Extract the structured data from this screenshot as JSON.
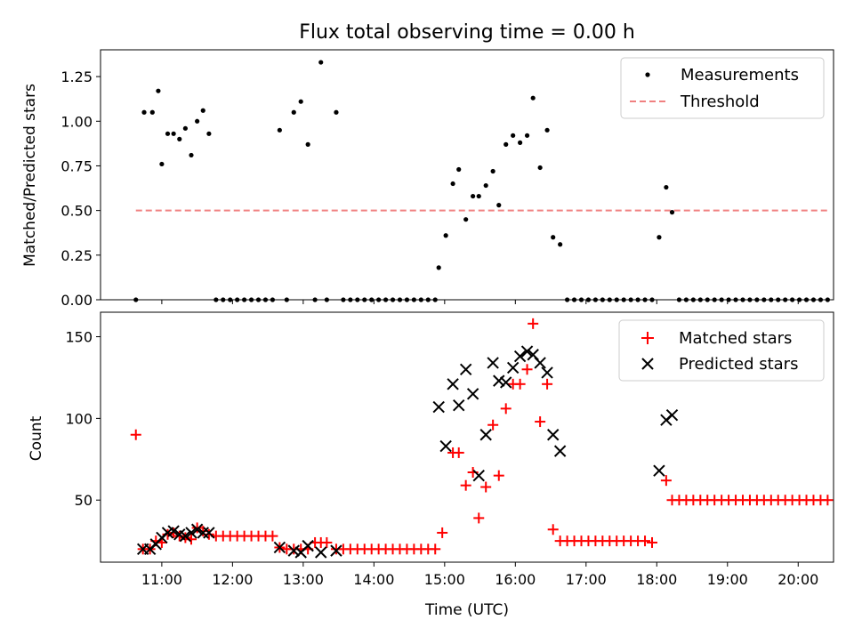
{
  "chart_data": [
    {
      "type": "scatter",
      "title": "Flux total observing time = 0.00 h",
      "xlabel": "",
      "ylabel": "Matched/Predicted stars",
      "ylim": [
        0,
        1.4
      ],
      "yticks": [
        0.0,
        0.25,
        0.5,
        0.75,
        1.0,
        1.25
      ],
      "ytick_labels": [
        "0.00",
        "0.25",
        "0.50",
        "0.75",
        "1.00",
        "1.25"
      ],
      "grid": false,
      "legend": "top-right",
      "colors": {
        "measurements": "#000000",
        "threshold": "#f08080"
      },
      "series": [
        {
          "name": "Measurements",
          "marker": "dot",
          "points": [
            [
              "10:38",
              0.0
            ],
            [
              "10:45",
              1.05
            ],
            [
              "10:52",
              1.05
            ],
            [
              "10:57",
              1.17
            ],
            [
              "11:00",
              0.76
            ],
            [
              "11:05",
              0.93
            ],
            [
              "11:10",
              0.93
            ],
            [
              "11:15",
              0.9
            ],
            [
              "11:20",
              0.96
            ],
            [
              "11:25",
              0.81
            ],
            [
              "11:30",
              1.0
            ],
            [
              "11:35",
              1.06
            ],
            [
              "11:40",
              0.93
            ],
            [
              "11:46",
              0.0
            ],
            [
              "11:52",
              0.0
            ],
            [
              "11:58",
              0.0
            ],
            [
              "12:04",
              0.0
            ],
            [
              "12:10",
              0.0
            ],
            [
              "12:16",
              0.0
            ],
            [
              "12:22",
              0.0
            ],
            [
              "12:28",
              0.0
            ],
            [
              "12:34",
              0.0
            ],
            [
              "12:40",
              0.95
            ],
            [
              "12:46",
              0.0
            ],
            [
              "12:52",
              1.05
            ],
            [
              "12:58",
              1.11
            ],
            [
              "13:04",
              0.87
            ],
            [
              "13:10",
              0.0
            ],
            [
              "13:15",
              1.33
            ],
            [
              "13:20",
              0.0
            ],
            [
              "13:28",
              1.05
            ],
            [
              "13:34",
              0.0
            ],
            [
              "13:40",
              0.0
            ],
            [
              "13:46",
              0.0
            ],
            [
              "13:52",
              0.0
            ],
            [
              "13:58",
              0.0
            ],
            [
              "14:04",
              0.0
            ],
            [
              "14:10",
              0.0
            ],
            [
              "14:16",
              0.0
            ],
            [
              "14:22",
              0.0
            ],
            [
              "14:28",
              0.0
            ],
            [
              "14:34",
              0.0
            ],
            [
              "14:40",
              0.0
            ],
            [
              "14:46",
              0.0
            ],
            [
              "14:52",
              0.0
            ],
            [
              "14:55",
              0.18
            ],
            [
              "15:01",
              0.36
            ],
            [
              "15:07",
              0.65
            ],
            [
              "15:12",
              0.73
            ],
            [
              "15:18",
              0.45
            ],
            [
              "15:24",
              0.58
            ],
            [
              "15:29",
              0.58
            ],
            [
              "15:35",
              0.64
            ],
            [
              "15:41",
              0.72
            ],
            [
              "15:46",
              0.53
            ],
            [
              "15:52",
              0.87
            ],
            [
              "15:58",
              0.92
            ],
            [
              "16:04",
              0.88
            ],
            [
              "16:10",
              0.92
            ],
            [
              "16:15",
              1.13
            ],
            [
              "16:21",
              0.74
            ],
            [
              "16:27",
              0.95
            ],
            [
              "16:32",
              0.35
            ],
            [
              "16:38",
              0.31
            ],
            [
              "16:44",
              0.0
            ],
            [
              "16:50",
              0.0
            ],
            [
              "16:56",
              0.0
            ],
            [
              "17:02",
              0.0
            ],
            [
              "17:08",
              0.0
            ],
            [
              "17:14",
              0.0
            ],
            [
              "17:20",
              0.0
            ],
            [
              "17:26",
              0.0
            ],
            [
              "17:32",
              0.0
            ],
            [
              "17:38",
              0.0
            ],
            [
              "17:44",
              0.0
            ],
            [
              "17:50",
              0.0
            ],
            [
              "17:56",
              0.0
            ],
            [
              "18:02",
              0.35
            ],
            [
              "18:08",
              0.63
            ],
            [
              "18:13",
              0.49
            ],
            [
              "18:19",
              0.0
            ],
            [
              "18:25",
              0.0
            ],
            [
              "18:31",
              0.0
            ],
            [
              "18:37",
              0.0
            ],
            [
              "18:43",
              0.0
            ],
            [
              "18:49",
              0.0
            ],
            [
              "18:55",
              0.0
            ],
            [
              "19:01",
              0.0
            ],
            [
              "19:07",
              0.0
            ],
            [
              "19:13",
              0.0
            ],
            [
              "19:19",
              0.0
            ],
            [
              "19:25",
              0.0
            ],
            [
              "19:31",
              0.0
            ],
            [
              "19:37",
              0.0
            ],
            [
              "19:43",
              0.0
            ],
            [
              "19:49",
              0.0
            ],
            [
              "19:55",
              0.0
            ],
            [
              "20:01",
              0.0
            ],
            [
              "20:07",
              0.0
            ],
            [
              "20:13",
              0.0
            ],
            [
              "20:19",
              0.0
            ],
            [
              "20:25",
              0.0
            ]
          ]
        },
        {
          "name": "Threshold",
          "style": "dashed-line",
          "points": [
            [
              "10:38",
              0.5
            ],
            [
              "20:25",
              0.5
            ]
          ]
        }
      ]
    },
    {
      "type": "scatter",
      "title": "",
      "xlabel": "Time (UTC)",
      "ylabel": "Count",
      "xlim": [
        "10:08",
        "20:30"
      ],
      "xticks": [
        "11:00",
        "12:00",
        "13:00",
        "14:00",
        "15:00",
        "16:00",
        "17:00",
        "18:00",
        "19:00",
        "20:00"
      ],
      "ylim": [
        12,
        165
      ],
      "yticks": [
        50,
        100,
        150
      ],
      "grid": false,
      "legend": "top-right",
      "colors": {
        "matched": "#ff0000",
        "predicted": "#000000"
      },
      "series": [
        {
          "name": "Matched stars",
          "marker": "plus",
          "points": [
            [
              "10:38",
              90
            ],
            [
              "10:44",
              20
            ],
            [
              "10:50",
              20
            ],
            [
              "10:55",
              25
            ],
            [
              "11:00",
              24
            ],
            [
              "11:05",
              29
            ],
            [
              "11:10",
              30
            ],
            [
              "11:15",
              28
            ],
            [
              "11:20",
              27
            ],
            [
              "11:25",
              26
            ],
            [
              "11:30",
              33
            ],
            [
              "11:35",
              31
            ],
            [
              "11:40",
              29
            ],
            [
              "11:46",
              28
            ],
            [
              "11:52",
              28
            ],
            [
              "11:58",
              28
            ],
            [
              "12:04",
              28
            ],
            [
              "12:10",
              28
            ],
            [
              "12:16",
              28
            ],
            [
              "12:22",
              28
            ],
            [
              "12:28",
              28
            ],
            [
              "12:34",
              28
            ],
            [
              "12:40",
              21
            ],
            [
              "12:46",
              20
            ],
            [
              "12:52",
              20
            ],
            [
              "12:58",
              20
            ],
            [
              "13:04",
              20
            ],
            [
              "13:10",
              24
            ],
            [
              "13:15",
              24
            ],
            [
              "13:20",
              24
            ],
            [
              "13:28",
              20
            ],
            [
              "13:34",
              20
            ],
            [
              "13:40",
              20
            ],
            [
              "13:46",
              20
            ],
            [
              "13:52",
              20
            ],
            [
              "13:58",
              20
            ],
            [
              "14:04",
              20
            ],
            [
              "14:10",
              20
            ],
            [
              "14:16",
              20
            ],
            [
              "14:22",
              20
            ],
            [
              "14:28",
              20
            ],
            [
              "14:34",
              20
            ],
            [
              "14:40",
              20
            ],
            [
              "14:46",
              20
            ],
            [
              "14:52",
              20
            ],
            [
              "14:58",
              30
            ],
            [
              "15:07",
              79
            ],
            [
              "15:12",
              79
            ],
            [
              "15:18",
              59
            ],
            [
              "15:24",
              67
            ],
            [
              "15:29",
              39
            ],
            [
              "15:35",
              58
            ],
            [
              "15:41",
              96
            ],
            [
              "15:46",
              65
            ],
            [
              "15:52",
              106
            ],
            [
              "15:58",
              121
            ],
            [
              "16:04",
              121
            ],
            [
              "16:10",
              130
            ],
            [
              "16:15",
              158
            ],
            [
              "16:21",
              98
            ],
            [
              "16:27",
              121
            ],
            [
              "16:32",
              32
            ],
            [
              "16:38",
              25
            ],
            [
              "16:44",
              25
            ],
            [
              "16:50",
              25
            ],
            [
              "16:56",
              25
            ],
            [
              "17:02",
              25
            ],
            [
              "17:08",
              25
            ],
            [
              "17:14",
              25
            ],
            [
              "17:20",
              25
            ],
            [
              "17:26",
              25
            ],
            [
              "17:32",
              25
            ],
            [
              "17:38",
              25
            ],
            [
              "17:44",
              25
            ],
            [
              "17:50",
              25
            ],
            [
              "17:56",
              24
            ],
            [
              "18:08",
              62
            ],
            [
              "18:13",
              50
            ],
            [
              "18:19",
              50
            ],
            [
              "18:25",
              50
            ],
            [
              "18:31",
              50
            ],
            [
              "18:37",
              50
            ],
            [
              "18:43",
              50
            ],
            [
              "18:49",
              50
            ],
            [
              "18:55",
              50
            ],
            [
              "19:01",
              50
            ],
            [
              "19:07",
              50
            ],
            [
              "19:13",
              50
            ],
            [
              "19:19",
              50
            ],
            [
              "19:25",
              50
            ],
            [
              "19:31",
              50
            ],
            [
              "19:37",
              50
            ],
            [
              "19:43",
              50
            ],
            [
              "19:49",
              50
            ],
            [
              "19:55",
              50
            ],
            [
              "20:01",
              50
            ],
            [
              "20:07",
              50
            ],
            [
              "20:13",
              50
            ],
            [
              "20:19",
              50
            ],
            [
              "20:25",
              50
            ]
          ]
        },
        {
          "name": "Predicted stars",
          "marker": "x",
          "points": [
            [
              "10:44",
              20
            ],
            [
              "10:50",
              20
            ],
            [
              "10:55",
              23
            ],
            [
              "11:00",
              27
            ],
            [
              "11:05",
              30
            ],
            [
              "11:10",
              31
            ],
            [
              "11:15",
              29
            ],
            [
              "11:20",
              28
            ],
            [
              "11:25",
              30
            ],
            [
              "11:30",
              32
            ],
            [
              "11:35",
              30
            ],
            [
              "11:40",
              30
            ],
            [
              "12:40",
              21
            ],
            [
              "12:52",
              19
            ],
            [
              "12:58",
              18
            ],
            [
              "13:04",
              22
            ],
            [
              "13:15",
              18
            ],
            [
              "13:28",
              19
            ],
            [
              "14:55",
              107
            ],
            [
              "15:01",
              83
            ],
            [
              "15:07",
              121
            ],
            [
              "15:12",
              108
            ],
            [
              "15:18",
              130
            ],
            [
              "15:24",
              115
            ],
            [
              "15:29",
              65
            ],
            [
              "15:35",
              90
            ],
            [
              "15:41",
              134
            ],
            [
              "15:46",
              123
            ],
            [
              "15:52",
              122
            ],
            [
              "15:58",
              131
            ],
            [
              "16:04",
              138
            ],
            [
              "16:10",
              141
            ],
            [
              "16:15",
              139
            ],
            [
              "16:21",
              134
            ],
            [
              "16:27",
              128
            ],
            [
              "16:32",
              90
            ],
            [
              "16:38",
              80
            ],
            [
              "18:02",
              68
            ],
            [
              "18:08",
              99
            ],
            [
              "18:13",
              102
            ]
          ]
        }
      ]
    }
  ]
}
